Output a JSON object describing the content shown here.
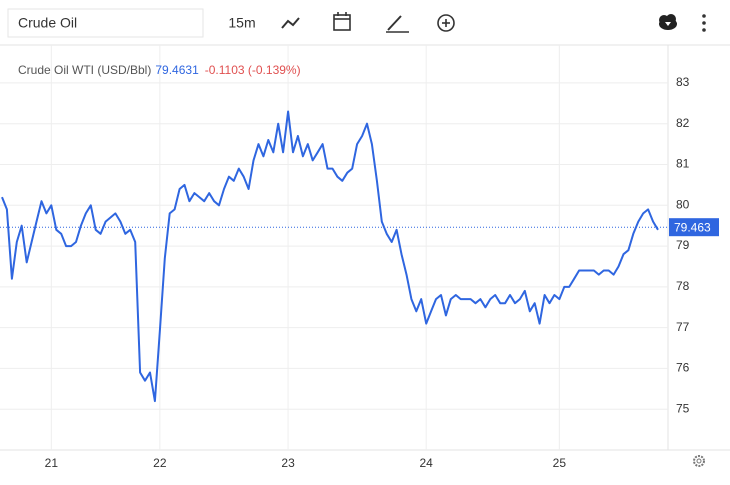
{
  "toolbar": {
    "symbol": "Crude Oil",
    "interval": "15m"
  },
  "chart_data": {
    "type": "line",
    "title": "Crude Oil WTI (USD/Bbl)",
    "last": 79.4631,
    "change": "-0.1103 (-0.139%)",
    "price_line": 79.463,
    "series": [
      {
        "name": "Crude Oil WTI",
        "color": "#2f66e0",
        "values": [
          80.2,
          79.9,
          78.2,
          79.1,
          79.5,
          78.6,
          79.1,
          79.6,
          80.1,
          79.8,
          80.0,
          79.4,
          79.3,
          79.0,
          79.0,
          79.1,
          79.5,
          79.8,
          80.0,
          79.4,
          79.3,
          79.6,
          79.7,
          79.8,
          79.6,
          79.3,
          79.4,
          79.1,
          75.9,
          75.7,
          75.9,
          75.2,
          76.9,
          78.7,
          79.8,
          79.9,
          80.4,
          80.5,
          80.1,
          80.3,
          80.2,
          80.1,
          80.3,
          80.1,
          80.0,
          80.4,
          80.7,
          80.6,
          80.9,
          80.7,
          80.4,
          81.1,
          81.5,
          81.2,
          81.6,
          81.3,
          82.0,
          81.3,
          82.3,
          81.3,
          81.7,
          81.2,
          81.5,
          81.1,
          81.3,
          81.5,
          80.9,
          80.9,
          80.7,
          80.6,
          80.8,
          80.9,
          81.5,
          81.7,
          82.0,
          81.5,
          80.6,
          79.6,
          79.3,
          79.1,
          79.4,
          78.8,
          78.3,
          77.7,
          77.4,
          77.7,
          77.1,
          77.4,
          77.7,
          77.8,
          77.3,
          77.7,
          77.8,
          77.7,
          77.7,
          77.7,
          77.6,
          77.7,
          77.5,
          77.7,
          77.8,
          77.6,
          77.6,
          77.8,
          77.6,
          77.7,
          77.9,
          77.4,
          77.6,
          77.1,
          77.8,
          77.6,
          77.8,
          77.7,
          78.0,
          78.0,
          78.2,
          78.4,
          78.4,
          78.4,
          78.4,
          78.3,
          78.4,
          78.4,
          78.3,
          78.5,
          78.8,
          78.9,
          79.3,
          79.6,
          79.8,
          79.9,
          79.6,
          79.4
        ]
      }
    ],
    "ylim": [
      74,
      83.93
    ],
    "yticks": [
      75,
      76,
      77,
      78,
      79,
      80,
      81,
      82,
      83
    ],
    "xlim": [
      0,
      133
    ],
    "xticks": [
      {
        "value": 10,
        "label": "21"
      },
      {
        "value": 32,
        "label": "22"
      },
      {
        "value": 58,
        "label": "23"
      },
      {
        "value": 86,
        "label": "24"
      },
      {
        "value": 113,
        "label": "25"
      }
    ],
    "grid": true
  }
}
